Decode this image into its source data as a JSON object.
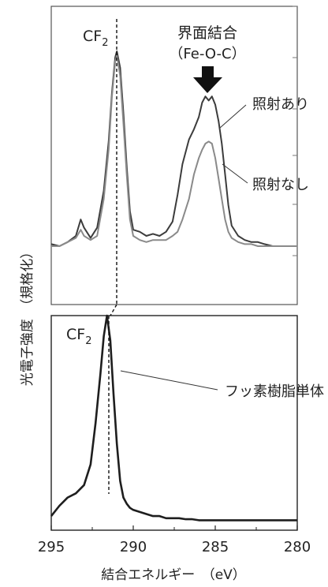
{
  "chart_data": [
    {
      "type": "line",
      "panel": "top",
      "xlim": [
        295,
        280
      ],
      "x_reversed": true,
      "grid": false,
      "annotations": {
        "peak_label_main": "CF",
        "peak_label_sub": "2",
        "interface_line1": "界面結合",
        "interface_line2": "（Fe-O-C）",
        "arrow": "down-arrow"
      },
      "series": [
        {
          "name": "照射あり",
          "color": "#3c3c3c",
          "x": [
            295,
            294.5,
            294,
            293.5,
            293.2,
            293,
            292.6,
            292.2,
            291.8,
            291.5,
            291.3,
            291.1,
            291,
            290.8,
            290.6,
            290.4,
            290.2,
            290,
            289.6,
            289.2,
            288.8,
            288.4,
            288,
            287.6,
            287.3,
            287,
            286.6,
            286.3,
            286,
            285.8,
            285.6,
            285.4,
            285.2,
            285,
            284.8,
            284.6,
            284.4,
            284.2,
            284,
            283.6,
            283.2,
            282.8,
            282.4,
            282,
            281.5,
            281,
            280.5,
            280
          ],
          "y": [
            0.06,
            0.05,
            0.07,
            0.1,
            0.18,
            0.14,
            0.09,
            0.14,
            0.32,
            0.56,
            0.8,
            0.97,
            1.0,
            0.92,
            0.7,
            0.44,
            0.22,
            0.13,
            0.12,
            0.1,
            0.11,
            0.1,
            0.12,
            0.17,
            0.3,
            0.45,
            0.57,
            0.62,
            0.68,
            0.75,
            0.78,
            0.76,
            0.78,
            0.74,
            0.66,
            0.55,
            0.4,
            0.25,
            0.15,
            0.1,
            0.08,
            0.07,
            0.07,
            0.06,
            0.05,
            0.05,
            0.05,
            0.05
          ]
        },
        {
          "name": "照射なし",
          "color": "#8a8a8a",
          "x": [
            295,
            294.5,
            294,
            293.5,
            293.2,
            293,
            292.6,
            292.2,
            291.8,
            291.5,
            291.3,
            291.1,
            291,
            290.8,
            290.6,
            290.4,
            290.2,
            290,
            289.6,
            289.2,
            288.8,
            288.4,
            288,
            287.6,
            287.3,
            287,
            286.6,
            286.3,
            286,
            285.8,
            285.6,
            285.4,
            285.2,
            285,
            284.8,
            284.6,
            284.4,
            284.2,
            284,
            283.6,
            283.2,
            282.8,
            282.4,
            282,
            281.5,
            281,
            280.5,
            280
          ],
          "y": [
            0.05,
            0.05,
            0.07,
            0.09,
            0.13,
            0.1,
            0.08,
            0.1,
            0.28,
            0.52,
            0.78,
            0.95,
            0.98,
            0.88,
            0.65,
            0.4,
            0.18,
            0.1,
            0.08,
            0.07,
            0.08,
            0.08,
            0.08,
            0.1,
            0.12,
            0.18,
            0.28,
            0.4,
            0.48,
            0.52,
            0.55,
            0.56,
            0.55,
            0.48,
            0.38,
            0.28,
            0.18,
            0.12,
            0.09,
            0.07,
            0.06,
            0.06,
            0.05,
            0.05,
            0.05,
            0.05,
            0.05,
            0.05
          ]
        }
      ]
    },
    {
      "type": "line",
      "panel": "bottom",
      "xlim": [
        295,
        280
      ],
      "x_reversed": true,
      "grid": false,
      "annotations": {
        "peak_label_main": "CF",
        "peak_label_sub": "2"
      },
      "series": [
        {
          "name": "フッ素樹脂単体",
          "color": "#1e1e1e",
          "x": [
            295,
            294.5,
            294,
            293.5,
            293,
            292.6,
            292.3,
            292,
            291.8,
            291.6,
            291.4,
            291.2,
            291,
            290.8,
            290.6,
            290.4,
            290.2,
            290,
            289.6,
            289.2,
            288.8,
            288.4,
            288,
            287.6,
            287.2,
            286.8,
            286.4,
            286,
            285.5,
            285,
            284.5,
            284,
            283.5,
            283,
            282.5,
            282,
            281.5,
            281,
            280.5,
            280
          ],
          "y": [
            0.03,
            0.08,
            0.12,
            0.14,
            0.18,
            0.28,
            0.48,
            0.72,
            0.9,
            1.0,
            0.88,
            0.62,
            0.38,
            0.2,
            0.12,
            0.09,
            0.07,
            0.06,
            0.05,
            0.04,
            0.03,
            0.03,
            0.02,
            0.02,
            0.02,
            0.015,
            0.015,
            0.01,
            0.01,
            0.01,
            0.01,
            0.01,
            0.01,
            0.01,
            0.01,
            0.01,
            0.01,
            0.01,
            0.01,
            0.01
          ]
        }
      ]
    }
  ],
  "axes": {
    "x_ticks": [
      "295",
      "290",
      "285",
      "280"
    ],
    "x_label": "結合エネルギー　（eV）",
    "y_label": "光電子強度　（規格化）"
  }
}
